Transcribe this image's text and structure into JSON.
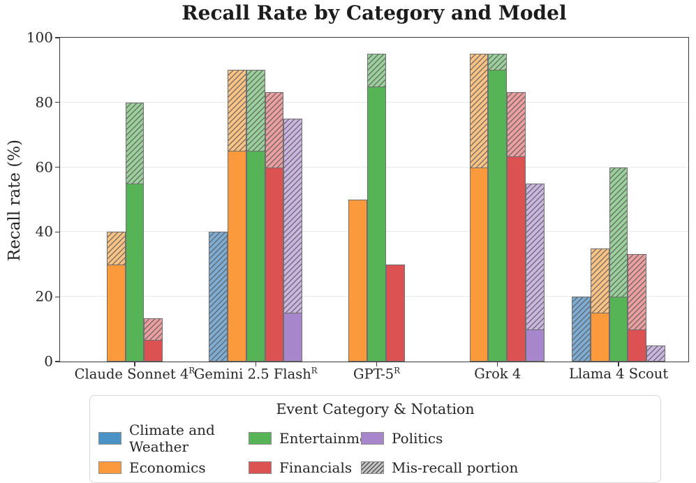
{
  "chart_data": {
    "type": "bar",
    "title": "Recall Rate by Category and Model",
    "ylabel": "Recall rate (%)",
    "ylim": [
      0,
      100
    ],
    "yticks": [
      0,
      20,
      40,
      60,
      80,
      100
    ],
    "grid": "horizontal-light",
    "legend_position": "below-chart",
    "bar_style": "grouped; solid lower segment = correct recall, hatched upper segment = mis-recall portion; missing bars mean no data for that category",
    "categories": [
      {
        "label": "Claude Sonnet 4",
        "sup": "R"
      },
      {
        "label": "Gemini 2.5 Flash",
        "sup": "R"
      },
      {
        "label": "GPT-5",
        "sup": "R"
      },
      {
        "label": "Grok 4",
        "sup": ""
      },
      {
        "label": "Llama 4 Scout",
        "sup": ""
      }
    ],
    "series": [
      {
        "name": "Climate and Weather",
        "color": "#4B92C6",
        "light": "#7FACD2",
        "recall": [
          null,
          0,
          null,
          null,
          0
        ],
        "total_with_misrecall": [
          null,
          40,
          null,
          null,
          20
        ]
      },
      {
        "name": "Economics",
        "color": "#FB993D",
        "light": "#FAC386",
        "recall": [
          30,
          65,
          50,
          60,
          15
        ],
        "total_with_misrecall": [
          40,
          90,
          50,
          95,
          35
        ]
      },
      {
        "name": "Entertainment",
        "color": "#56B356",
        "light": "#9BCF9B",
        "recall": [
          55,
          65,
          85,
          90,
          20
        ],
        "total_with_misrecall": [
          80,
          90,
          95,
          95,
          60
        ]
      },
      {
        "name": "Financials",
        "color": "#DC5152",
        "light": "#EB9FA0",
        "recall": [
          6.7,
          60,
          30,
          63.3,
          10
        ],
        "total_with_misrecall": [
          13.3,
          83.3,
          30,
          83.3,
          33.3
        ]
      },
      {
        "name": "Politics",
        "color": "#A886CB",
        "light": "#CBB6E1",
        "recall": [
          null,
          15,
          null,
          10,
          0
        ],
        "total_with_misrecall": [
          null,
          75,
          null,
          55,
          5
        ]
      }
    ],
    "legend": {
      "title": "Event Category & Notation",
      "entries": [
        {
          "label": "Climate and Weather",
          "color": "#4B92C6",
          "hatch": false
        },
        {
          "label": "Entertainment",
          "color": "#56B356",
          "hatch": false
        },
        {
          "label": "Politics",
          "color": "#A886CB",
          "hatch": false
        },
        {
          "label": "Economics",
          "color": "#FB993D",
          "hatch": false
        },
        {
          "label": "Financials",
          "color": "#DC5152",
          "hatch": false
        },
        {
          "label": "Mis-recall portion",
          "color": "#C6C6C6",
          "hatch": true
        }
      ]
    }
  }
}
